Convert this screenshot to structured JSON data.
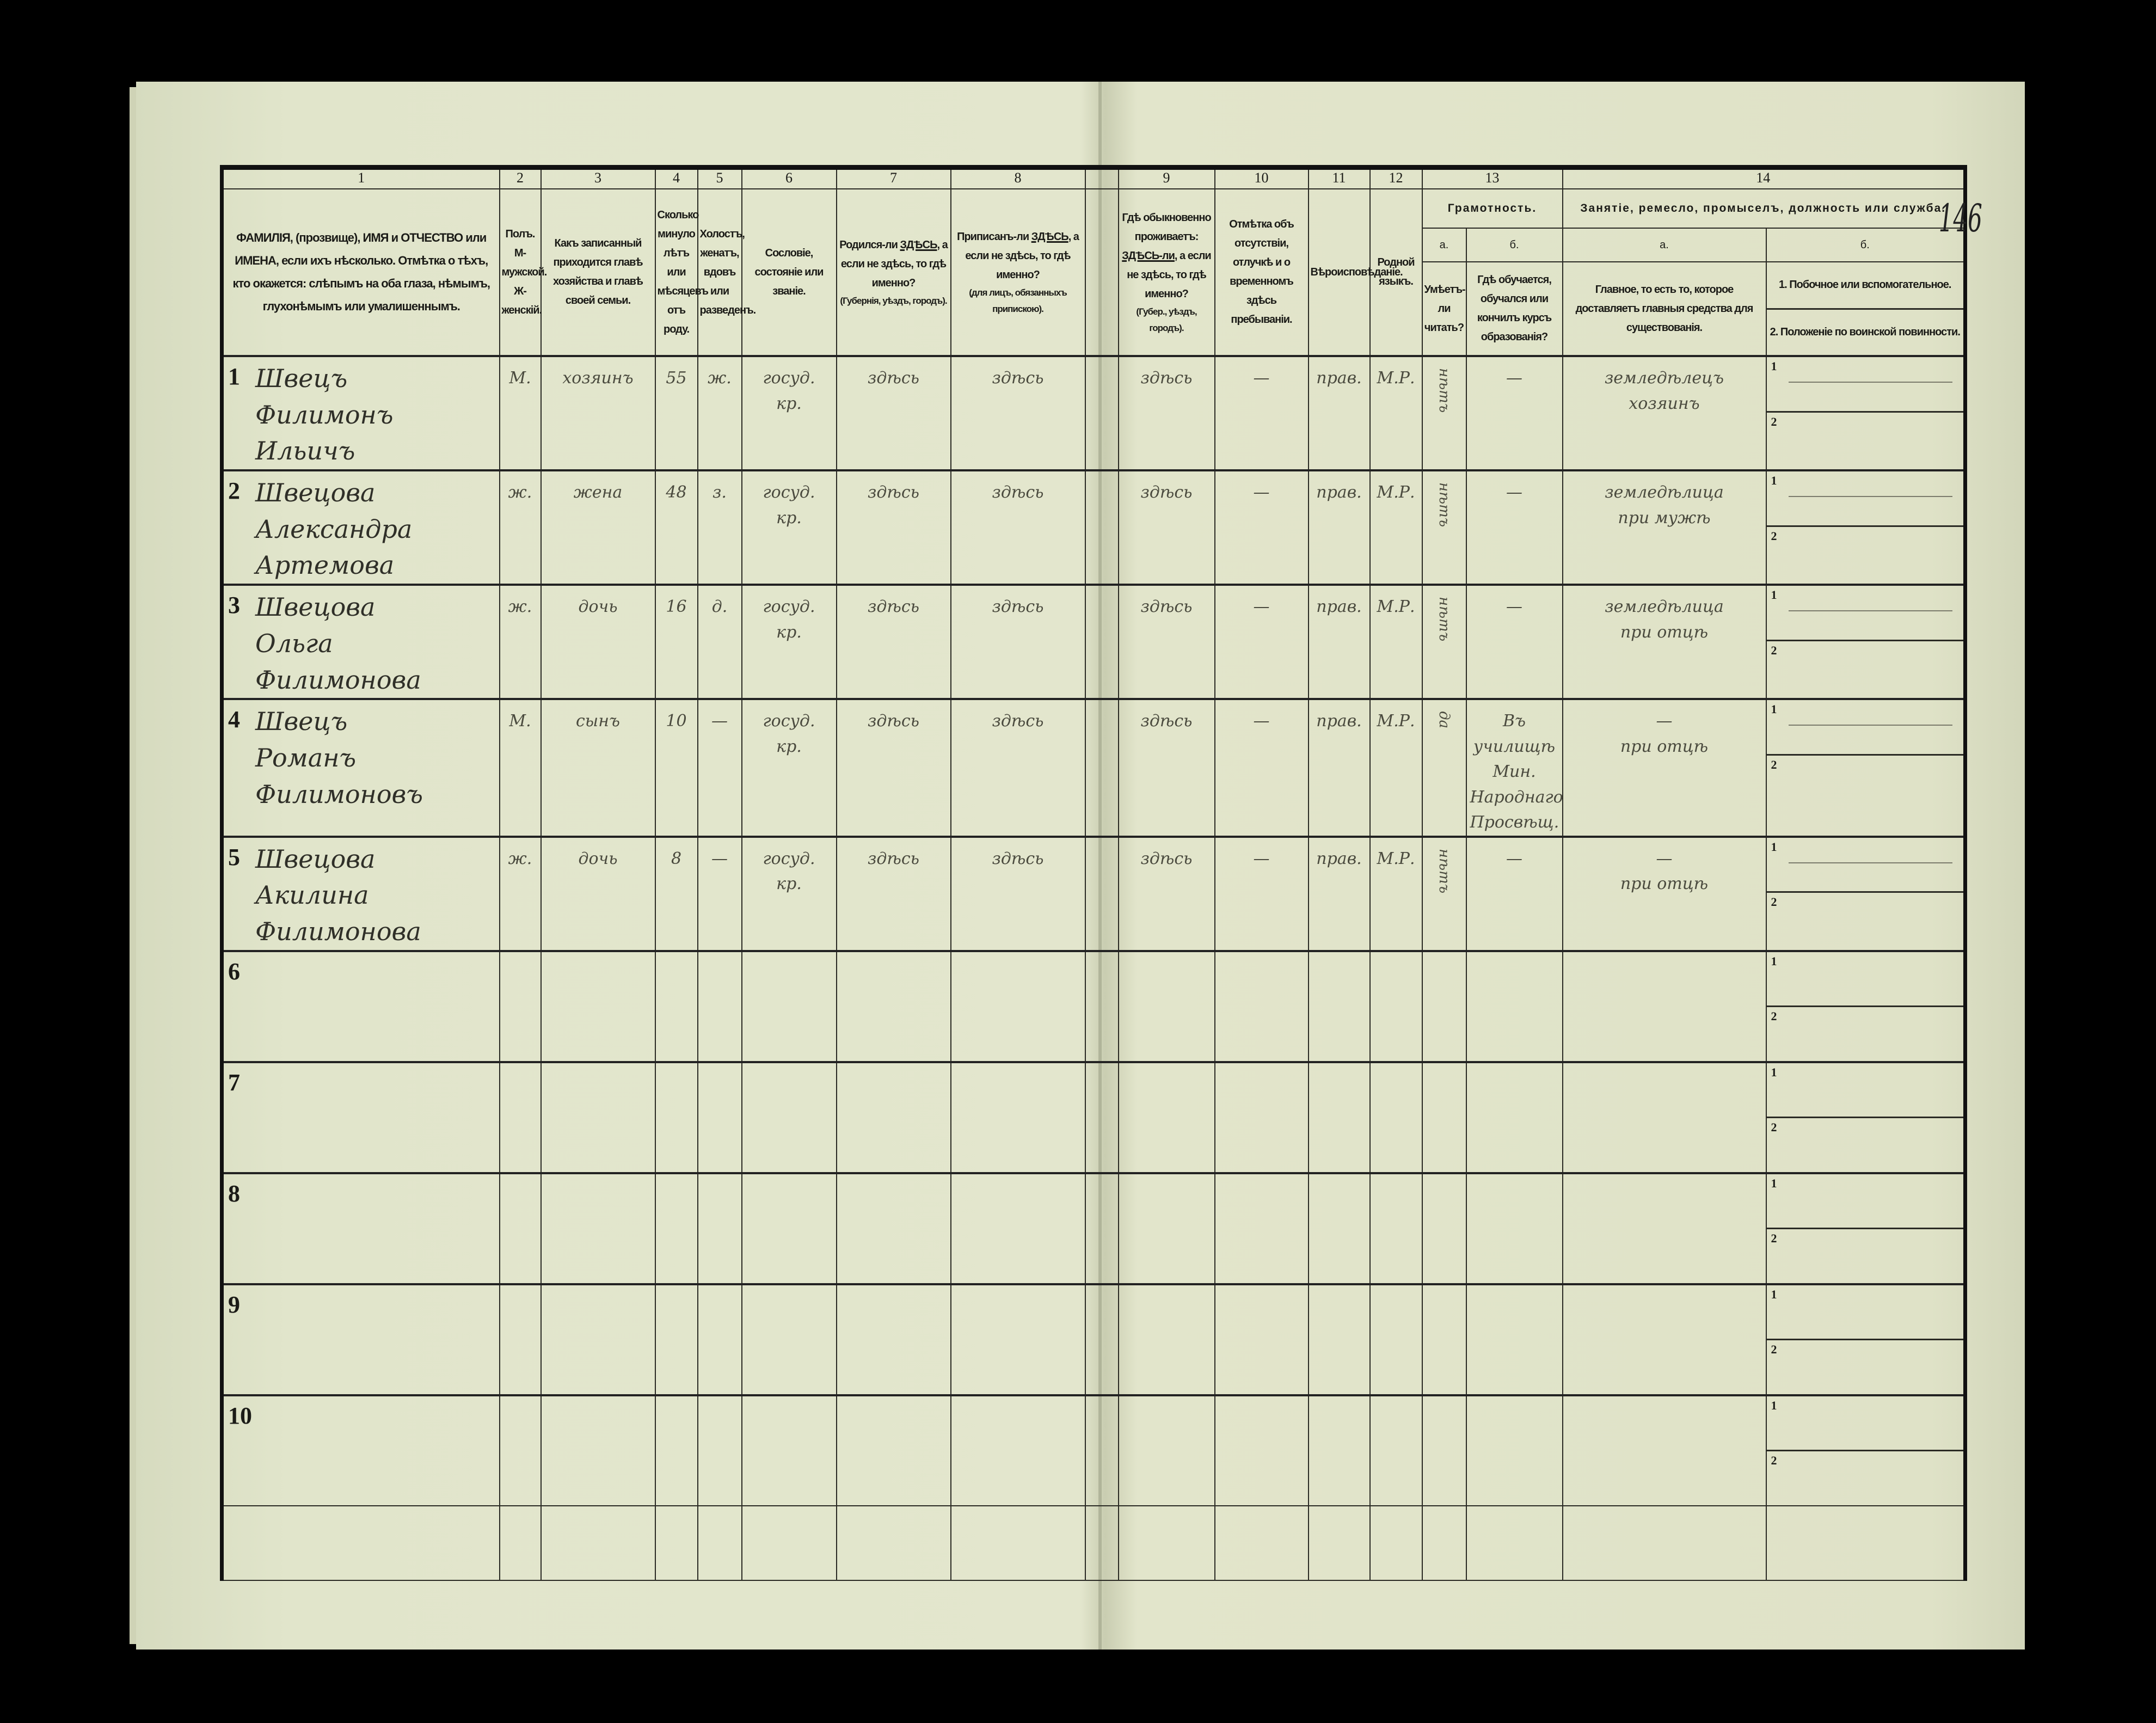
{
  "page_number": "146",
  "header": {
    "col1": {
      "num": "1",
      "text": "ФАМИЛІЯ, (прозвище), ИМЯ и ОТЧЕСТВО или ИМЕНА, если ихъ нѣсколько. Отмѣтка о тѣхъ, кто окажется: слѣпымъ на оба глаза, нѣмымъ, глухонѣмымъ или умалишеннымъ."
    },
    "col2": {
      "num": "2",
      "text": "Полъ. М-мужской. Ж-женскій."
    },
    "col3": {
      "num": "3",
      "text": "Какъ записанный приходится главѣ хозяйства и главѣ своей семьи."
    },
    "col4": {
      "num": "4",
      "text": "Сколько минуло лѣтъ или мѣсяцевъ отъ роду."
    },
    "col5": {
      "num": "5",
      "text": "Холостъ, женатъ, вдовъ или разведенъ."
    },
    "col6": {
      "num": "6",
      "text": "Сословіе, состояніе или званіе."
    },
    "col7": {
      "num": "7",
      "before": "Родился-ли ",
      "emph": "ЗДѢСЬ",
      "after": ", а если не здѣсь, то гдѣ именно?",
      "sub": "(Губернія, уѣздъ, городъ)."
    },
    "col8": {
      "num": "8",
      "before": "Приписанъ-ли ",
      "emph": "ЗДѢСЬ",
      "after": ", а если не здѣсь, то гдѣ именно?",
      "sub": "(для лицъ, обязанныхъ припискою)."
    },
    "col9": {
      "num": "9",
      "before": "Гдѣ обыкновенно проживаетъ: ",
      "emph": "ЗДѢСЬ-ли",
      "after": ", а если не здѣсь, то гдѣ именно?",
      "sub": "(Губер., уѣздъ, городъ)."
    },
    "col10": {
      "num": "10",
      "text": "Отмѣтка объ отсутствіи, отлучкѣ и о временномъ здѣсь пребываніи."
    },
    "col11": {
      "num": "11",
      "text": "Вѣроисповѣданіе."
    },
    "col12": {
      "num": "12",
      "text": "Родной языкъ."
    },
    "col13": {
      "num": "13",
      "group": "Грамотность.",
      "a_label": "а.",
      "b_label": "б.",
      "a_text": "Умѣетъ-ли читать?",
      "b_text": "Гдѣ обучается, обучался или кончилъ курсъ образованія?"
    },
    "col14": {
      "num": "14",
      "group": "Занятіе, ремесло, промыселъ, должность или служба.",
      "a_label": "а.",
      "b_label": "б.",
      "a_text": "Главное, то есть то, которое доставляетъ главныя средства для существованія.",
      "b1_text": "1. Побочное или вспомогательное.",
      "b2_text": "2. Положеніе по воинской повинности."
    }
  },
  "sub_labels": {
    "one": "1",
    "two": "2"
  },
  "rows": [
    {
      "n": "1",
      "name": "Швецъ\nФилимонъ\nИльичъ",
      "sex": "М.",
      "relation": "хозяинъ",
      "age": "55",
      "marital": "ж.",
      "estate": "госуд.\nкр.",
      "born": "здѣсь",
      "registered": "здѣсь",
      "residence": "здѣсь",
      "absence": "—",
      "religion": "прав.",
      "language": "М.Р.",
      "literate": "нѣтъ",
      "education": "—",
      "occupation": "земледѣлецъ\nхозяинъ",
      "secondary": "—"
    },
    {
      "n": "2",
      "name": "Швецова\nАлександра\nАртемова",
      "sex": "ж.",
      "relation": "жена",
      "age": "48",
      "marital": "з.",
      "estate": "госуд.\nкр.",
      "born": "здѣсь",
      "registered": "здѣсь",
      "residence": "здѣсь",
      "absence": "—",
      "religion": "прав.",
      "language": "М.Р.",
      "literate": "нѣтъ",
      "education": "—",
      "occupation": "земледѣлица\nпри мужѣ",
      "secondary": "—"
    },
    {
      "n": "3",
      "name": "Швецова\nОльга\nФилимонова",
      "sex": "ж.",
      "relation": "дочь",
      "age": "16",
      "marital": "д.",
      "estate": "госуд.\nкр.",
      "born": "здѣсь",
      "registered": "здѣсь",
      "residence": "здѣсь",
      "absence": "—",
      "religion": "прав.",
      "language": "М.Р.",
      "literate": "нѣтъ",
      "education": "—",
      "occupation": "земледѣлица\nпри отцѣ",
      "secondary": "—"
    },
    {
      "n": "4",
      "name": "Швецъ\nРоманъ\nФилимоновъ",
      "sex": "М.",
      "relation": "сынъ",
      "age": "10",
      "marital": "—",
      "estate": "госуд.\nкр.",
      "born": "здѣсь",
      "registered": "здѣсь",
      "residence": "здѣсь",
      "absence": "—",
      "religion": "прав.",
      "language": "М.Р.",
      "literate": "да",
      "education": "Въ училищѣ Мин.\nНароднаго\nПросвѣщ.",
      "occupation": "—\nпри отцѣ",
      "secondary": "—"
    },
    {
      "n": "5",
      "name": "Швецова\nАкилина\nФилимонова",
      "sex": "ж.",
      "relation": "дочь",
      "age": "8",
      "marital": "—",
      "estate": "госуд.\nкр.",
      "born": "здѣсь",
      "registered": "здѣсь",
      "residence": "здѣсь",
      "absence": "—",
      "religion": "прав.",
      "language": "М.Р.",
      "literate": "нѣтъ",
      "education": "—",
      "occupation": "—\nпри отцѣ",
      "secondary": "—"
    },
    {
      "n": "6"
    },
    {
      "n": "7"
    },
    {
      "n": "8"
    },
    {
      "n": "9"
    },
    {
      "n": "10"
    }
  ]
}
